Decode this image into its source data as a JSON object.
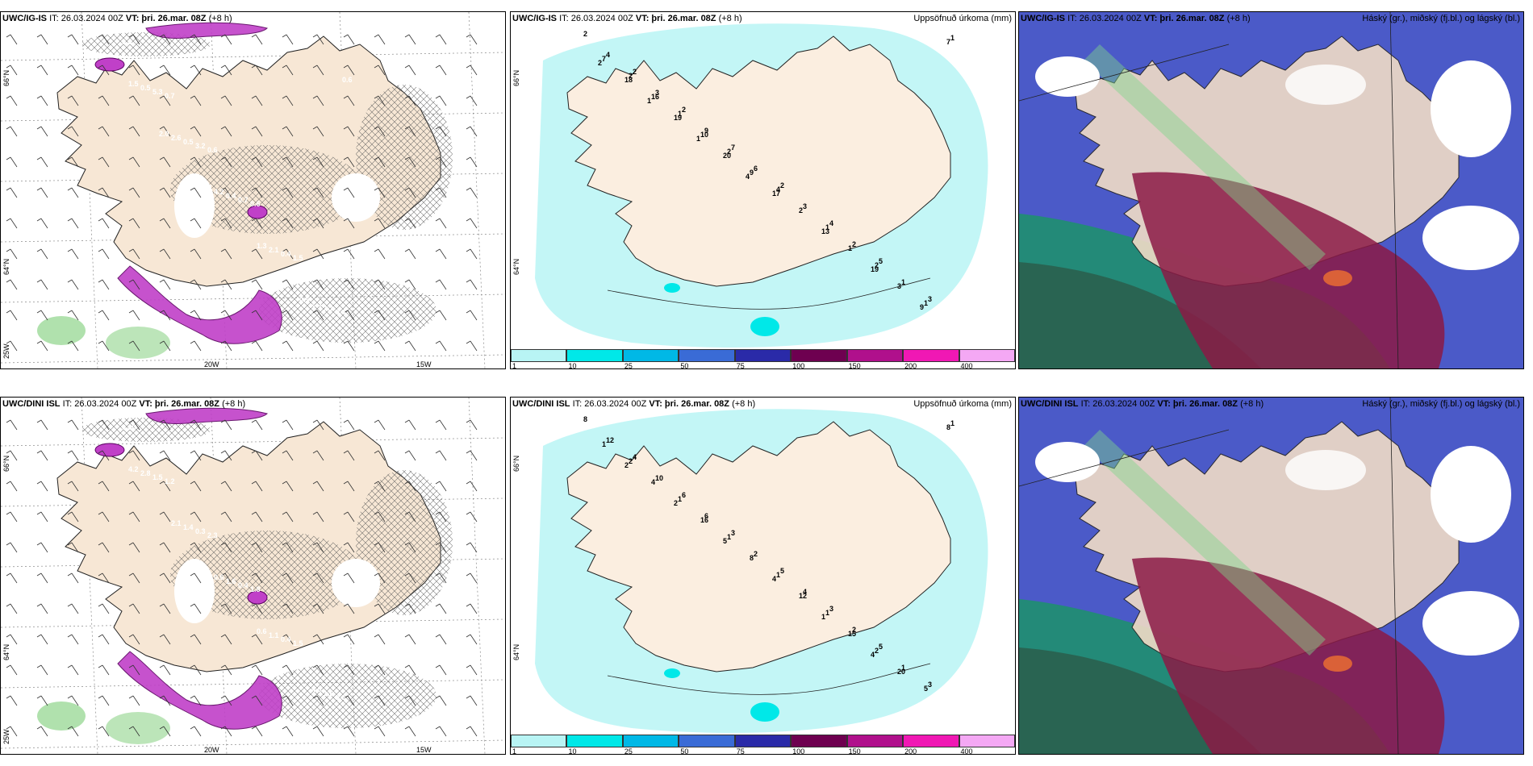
{
  "panels": [
    {
      "model": "UWC/IG-IS",
      "it": "IT: 26.03.2024 00Z",
      "vt_label": "VT:",
      "vt": "þri. 26.mar. 08Z",
      "lead": "(+8 h)",
      "right_title": ""
    },
    {
      "model": "UWC/IG-IS",
      "it": "IT: 26.03.2024 00Z",
      "vt_label": "VT:",
      "vt": "þri. 26.mar. 08Z",
      "lead": "(+8 h)",
      "right_title": "Uppsöfnuð úrkoma (mm)"
    },
    {
      "model": "UWC/IG-IS",
      "it": "IT: 26.03.2024 00Z",
      "vt_label": "VT:",
      "vt": "þri. 26.mar. 08Z",
      "lead": "(+8 h)",
      "right_title": "Háský (gr.), miðský (fj.bl.) og lágský (bl.)"
    },
    {
      "model": "UWC/DINI ISL",
      "it": "IT: 26.03.2024 00Z",
      "vt_label": "VT:",
      "vt": "þri. 26.mar. 08Z",
      "lead": "(+8 h)",
      "right_title": ""
    },
    {
      "model": "UWC/DINI ISL",
      "it": "IT: 26.03.2024 00Z",
      "vt_label": "VT:",
      "vt": "þri. 26.mar. 08Z",
      "lead": "(+8 h)",
      "right_title": "Uppsöfnuð úrkoma (mm)"
    },
    {
      "model": "UWC/DINI ISL",
      "it": "IT: 26.03.2024 00Z",
      "vt_label": "VT:",
      "vt": "þri. 26.mar. 08Z",
      "lead": "(+8 h)",
      "right_title": "Háský (gr.), miðský (fj.bl.) og lágský (bl.)"
    }
  ],
  "axes": {
    "lat66": "66°N",
    "lat64": "64°N",
    "lat25": "25W",
    "lon20": "20W",
    "lon15": "15W",
    "lat66b": "66°N",
    "lat64b": "64°N"
  },
  "colorbar": {
    "ticks": [
      "1",
      "10",
      "25",
      "50",
      "75",
      "100",
      "150",
      "200",
      "400"
    ],
    "colors": [
      "#b8f4f4",
      "#00e8e8",
      "#00b8e6",
      "#3a6bd6",
      "#2a2aa8",
      "#6e0050",
      "#b0108c",
      "#f018b4",
      "#f4a8f4"
    ]
  },
  "precip_top": [
    "2",
    "2",
    "2",
    "7",
    "2",
    "4",
    "5",
    "3",
    "4",
    "3",
    "9",
    "6",
    "3",
    "2",
    "1",
    "1",
    "2",
    "1",
    "2",
    "4",
    "1",
    "2",
    "1",
    "7",
    "16",
    "10",
    "9",
    "2",
    "1",
    "3",
    "7",
    "18",
    "19",
    "20",
    "17",
    "13",
    "19",
    "9",
    "2",
    "1",
    "1",
    "4"
  ],
  "precip_bottom": [
    "8",
    "4",
    "6",
    "3",
    "5",
    "3",
    "5",
    "3",
    "12",
    "10",
    "6",
    "2",
    "4",
    "2",
    "1",
    "1",
    "2",
    "1",
    "1",
    "1",
    "1",
    "2",
    "5",
    "1",
    "4",
    "16",
    "8",
    "12",
    "15",
    "20",
    "8",
    "2",
    "2",
    "5",
    "4",
    "1",
    "4"
  ],
  "wind_labels_top": [
    "0.8",
    "0.7",
    "0.6",
    "0.6",
    "1.5",
    "0.4",
    "5.3",
    "3.2",
    "0.7",
    "0.4",
    "1.1",
    "0.5",
    "0.5",
    "0.4",
    "2.1",
    "2.3",
    "1.5",
    "2.6",
    "4.2",
    "1.3",
    "0.5",
    "0.6",
    "2.0",
    "0.7"
  ],
  "wind_labels_bottom": [
    "0.60",
    "1.2",
    "2.3",
    "1.8",
    "1.5",
    "0.6",
    "1.5",
    "0.3",
    "0.4",
    "0.4",
    "1.6",
    "2.8",
    "1.4",
    "1.6",
    "1.1",
    "4.0",
    "4.2",
    "2.1",
    "0.6",
    "0.6"
  ]
}
